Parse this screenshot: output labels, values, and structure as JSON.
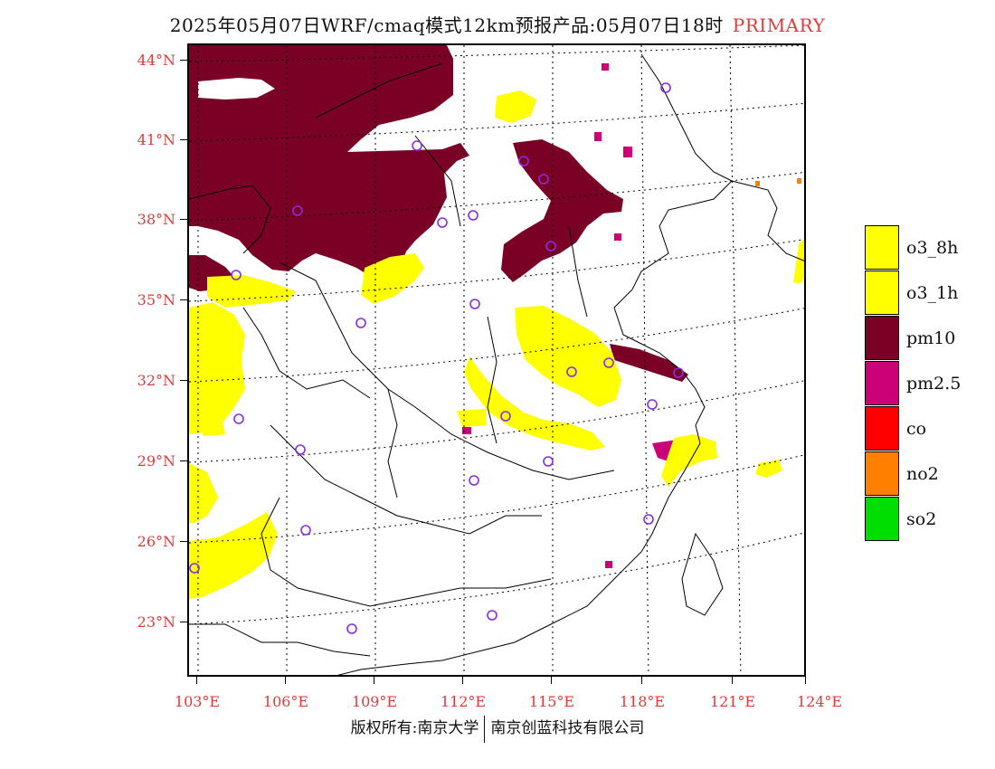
{
  "header": {
    "title": "2025年05月07日WRF/cmaq模式12km预报产品:05月07日18时",
    "mode_label": "PRIMARY"
  },
  "axes": {
    "lat_labels": [
      "44°N",
      "41°N",
      "38°N",
      "35°N",
      "32°N",
      "29°N",
      "26°N",
      "23°N"
    ],
    "lon_labels": [
      "103°E",
      "106°E",
      "109°E",
      "112°E",
      "115°E",
      "118°E",
      "121°E",
      "124°E"
    ]
  },
  "legend": {
    "items": [
      {
        "label": "o3_8h",
        "color": "#ffff00"
      },
      {
        "label": "o3_1h",
        "color": "#ffff00"
      },
      {
        "label": "pm10",
        "color": "#7a0026"
      },
      {
        "label": "pm2.5",
        "color": "#cc0077"
      },
      {
        "label": "co",
        "color": "#ff0000"
      },
      {
        "label": "no2",
        "color": "#ff7f00"
      },
      {
        "label": "so2",
        "color": "#00dd00"
      }
    ]
  },
  "colors": {
    "pm10": "#7a0026",
    "pm25": "#cc0077",
    "o3": "#ffff00",
    "no2": "#ff7f00",
    "station_marker": "#8a2be2",
    "axis_label": "#e03a3a"
  },
  "footer": {
    "copyright_left": "版权所有:南京大学",
    "copyright_right": "南京创蓝科技有限公司"
  }
}
